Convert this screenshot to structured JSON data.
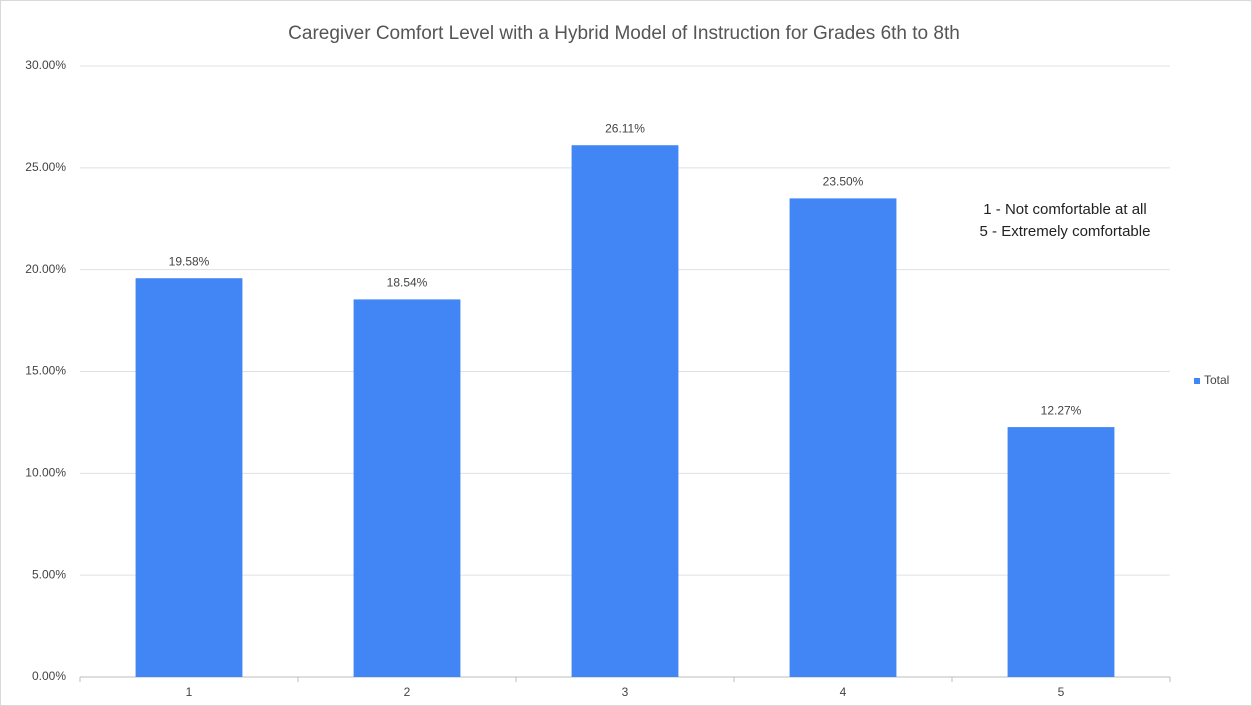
{
  "chart_data": {
    "type": "bar",
    "title": "Caregiver Comfort Level with  a Hybrid Model of Instruction for Grades 6th to 8th",
    "categories": [
      "1",
      "2",
      "3",
      "4",
      "5"
    ],
    "series": [
      {
        "name": "Total",
        "color": "#4285f4",
        "values": [
          19.58,
          18.54,
          26.11,
          23.5,
          12.27
        ],
        "value_labels": [
          "19.58%",
          "18.54%",
          "26.11%",
          "23.50%",
          "12.27%"
        ]
      }
    ],
    "ylim": [
      0,
      30
    ],
    "yticks": [
      {
        "value": 0,
        "label": "0.00%"
      },
      {
        "value": 5,
        "label": "5.00%"
      },
      {
        "value": 10,
        "label": "10.00%"
      },
      {
        "value": 15,
        "label": "15.00%"
      },
      {
        "value": 20,
        "label": "20.00%"
      },
      {
        "value": 25,
        "label": "25.00%"
      },
      {
        "value": 30,
        "label": "30.00%"
      }
    ],
    "grid": true,
    "legend": "right",
    "annotations": [
      "1 - Not comfortable at all",
      "5 - Extremely comfortable"
    ]
  }
}
